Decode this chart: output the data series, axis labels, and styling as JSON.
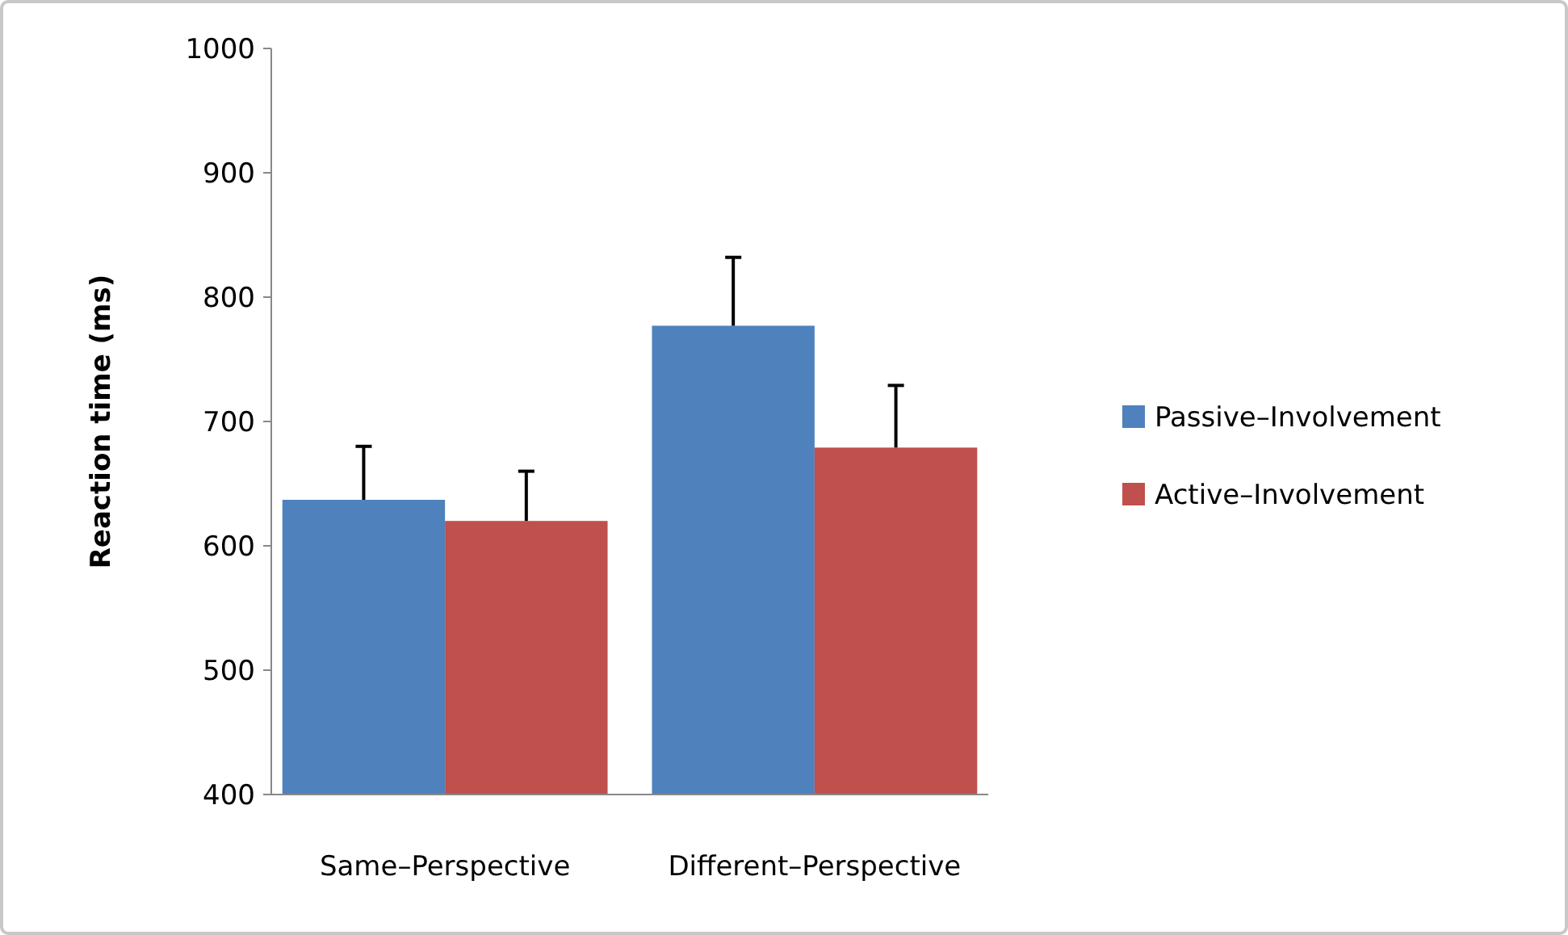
{
  "chart_data": {
    "type": "bar",
    "ylabel": "Reaction time (ms)",
    "categories": [
      "Same–Perspective",
      "Different–Perspective"
    ],
    "series": [
      {
        "name": "Passive–Involvement",
        "color": "#4f81bd",
        "values": [
          637,
          777
        ],
        "errors": [
          [
            637,
            680
          ],
          [
            777,
            832
          ]
        ]
      },
      {
        "name": "Active–Involvement",
        "color": "#c0504d",
        "values": [
          620,
          679
        ],
        "errors": [
          [
            620,
            660
          ],
          [
            679,
            729
          ]
        ]
      }
    ],
    "ylim": [
      400,
      1000
    ],
    "yticks": [
      400,
      500,
      600,
      700,
      800,
      900,
      1000
    ],
    "grid": false,
    "legend": "right"
  }
}
